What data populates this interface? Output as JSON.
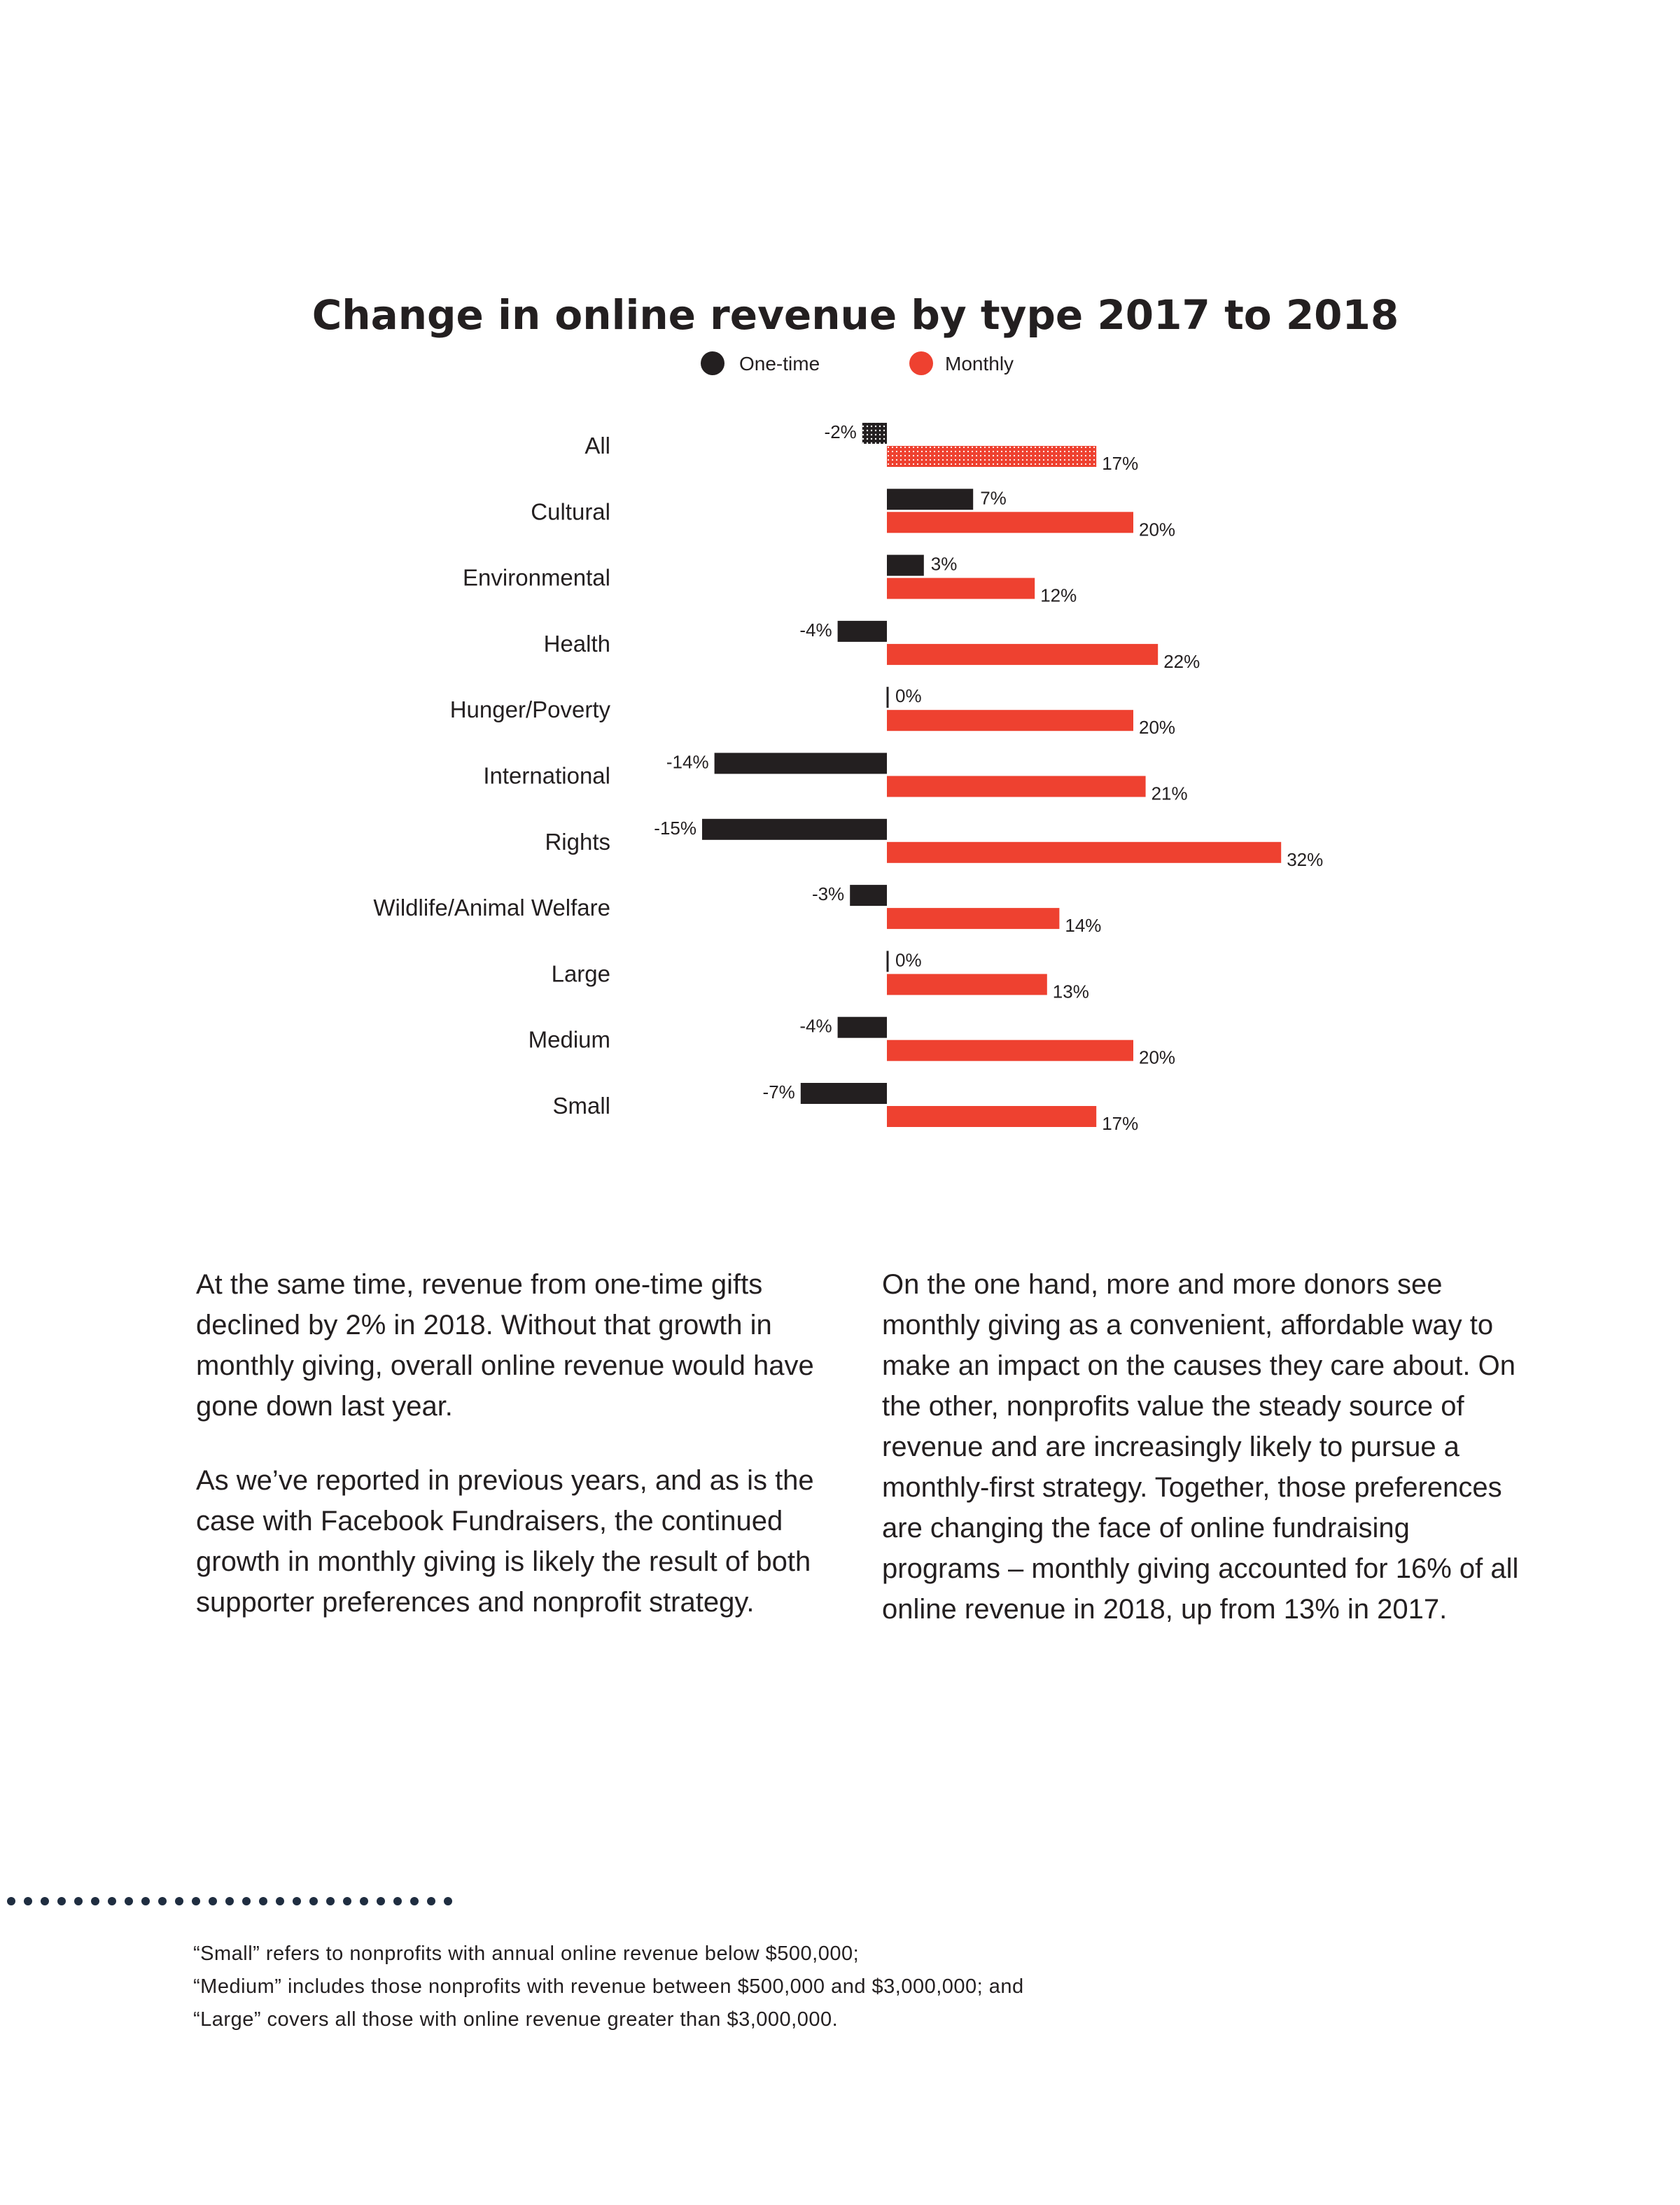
{
  "colors": {
    "one_time": "#231f20",
    "monthly": "#ee4130",
    "text": "#231f20",
    "dots": "#1f2d40"
  },
  "chart_data": {
    "type": "bar",
    "orientation": "horizontal",
    "title": "Change in online revenue by type 2017 to 2018",
    "legend": [
      "One-time",
      "Monthly"
    ],
    "categories": [
      "All",
      "Cultural",
      "Environmental",
      "Health",
      "Hunger/Poverty",
      "International",
      "Rights",
      "Wildlife/Animal Welfare",
      "Large",
      "Medium",
      "Small"
    ],
    "series": [
      {
        "name": "One-time",
        "values": [
          -2,
          7,
          3,
          -4,
          0,
          -14,
          -15,
          -3,
          0,
          -4,
          -7
        ],
        "labels": [
          "-2%",
          "7%",
          "3%",
          "-4%",
          "0%",
          "-14%",
          "-15%",
          "-3%",
          "0%",
          "-4%",
          "-7%"
        ]
      },
      {
        "name": "Monthly",
        "values": [
          17,
          20,
          12,
          22,
          20,
          21,
          32,
          14,
          13,
          20,
          17
        ],
        "labels": [
          "17%",
          "20%",
          "12%",
          "22%",
          "20%",
          "21%",
          "32%",
          "14%",
          "13%",
          "20%",
          "17%"
        ]
      }
    ],
    "highlighted_category": "All",
    "unit": "%"
  },
  "body": {
    "left_p1": "At the same time, revenue from one-time gifts declined by 2% in 2018. Without that growth in monthly giving, overall online revenue would have gone down last year.",
    "left_p2": "As we’ve reported in previous years, and as is the case with Facebook Fundraisers, the continued growth in monthly giving is likely the result of both supporter preferences and nonprofit strategy.",
    "right_p1": "On the one hand, more and more donors see monthly giving as a convenient, affordable way to make an impact on the causes they care about. On the other, nonprofits value the steady source of revenue and are increasingly likely to pursue a monthly-first strategy. Together, those preferences are changing the face of online fundraising programs – monthly giving accounted for 16% of all online revenue in 2018, up from 13% in 2017."
  },
  "footnote": {
    "line1": "“Small” refers to nonprofits with annual online revenue below $500,000;",
    "line2": "“Medium” includes those nonprofits with revenue between $500,000 and $3,000,000; and",
    "line3": "“Large” covers all those with online revenue greater than $3,000,000."
  }
}
